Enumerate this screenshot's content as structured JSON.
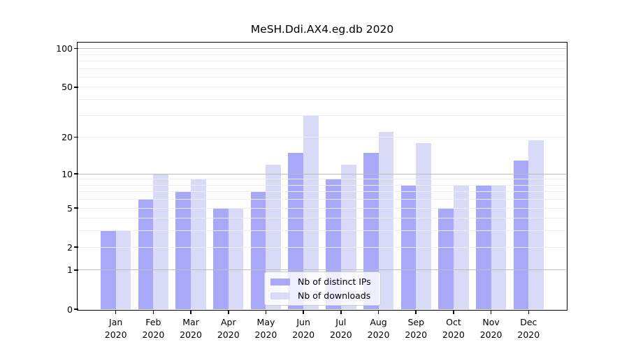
{
  "figure": {
    "background": "#ffffff",
    "axis_color": "#000000"
  },
  "chart_data": {
    "type": "bar",
    "title": "MeSH.Ddi.AX4.eg.db 2020",
    "categories": [
      "Jan",
      "Feb",
      "Mar",
      "Apr",
      "May",
      "Jun",
      "Jul",
      "Aug",
      "Sep",
      "Oct",
      "Nov",
      "Dec"
    ],
    "category_year": "2020",
    "series": [
      {
        "name": "Nb of distinct IPs",
        "color": "#a8a8f8",
        "values": [
          3,
          6,
          7,
          5,
          7,
          15,
          9,
          15,
          8,
          5,
          8,
          13
        ]
      },
      {
        "name": "Nb of downloads",
        "color": "#d9d9f8",
        "values": [
          3,
          10,
          9,
          5,
          12,
          30,
          12,
          22,
          18,
          8,
          8,
          19
        ]
      }
    ],
    "yscale": "log1p",
    "ylim": [
      0,
      110
    ],
    "yticks": [
      0,
      1,
      2,
      5,
      10,
      20,
      50,
      100
    ],
    "grid": {
      "major_values": [
        1,
        10,
        100
      ],
      "minor_values": [
        2,
        3,
        4,
        5,
        6,
        7,
        8,
        9,
        20,
        30,
        40,
        50,
        60,
        70,
        80,
        90
      ],
      "major_color": "#bdbdbd",
      "minor_color": "#ececec"
    },
    "legend": {
      "position": "inside-bottom-center"
    }
  }
}
